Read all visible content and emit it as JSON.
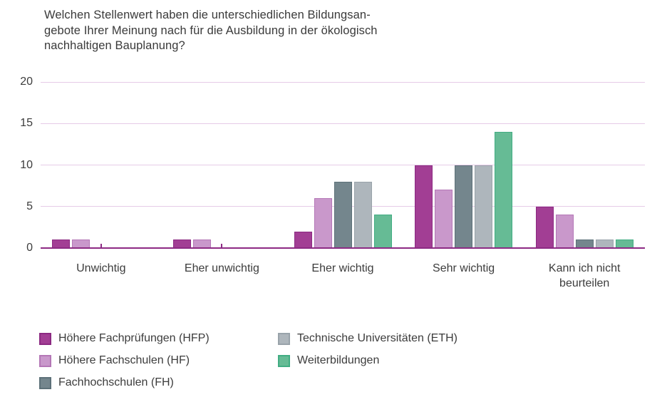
{
  "page": {
    "background": "#ffffff"
  },
  "chart_data": {
    "type": "bar",
    "title": "Welchen Stellenwert haben die unterschiedlichen Bildungsangebote Ihrer Meinung nach für die Ausbildung in der ökologisch nachhaltigen Bauplanung?",
    "title_lines": [
      "Welchen Stellenwert haben die unterschiedlichen Bildungsan-",
      "gebote Ihrer Meinung nach für die Ausbildung in der ökologisch",
      "nachhaltigen Bauplanung?"
    ],
    "categories": [
      "Unwichtig",
      "Eher unwichtig",
      "Eher wichtig",
      "Sehr wichtig",
      "Kann ich nicht beurteilen"
    ],
    "series": [
      {
        "name": "Höhere Fachprüfungen (HFP)",
        "values": [
          1,
          1,
          2,
          10,
          5
        ],
        "color": "#a23e94",
        "border_color": "#8c2a82"
      },
      {
        "name": "Höhere Fachschulen (HF)",
        "values": [
          1,
          1,
          6,
          7,
          4
        ],
        "color": "#c998cb",
        "border_color": "#b477b6"
      },
      {
        "name": "Fachhochschulen (FH)",
        "values": [
          0,
          0,
          8,
          10,
          1
        ],
        "color": "#74868d",
        "border_color": "#5d7179"
      },
      {
        "name": "Technische Universitäten (ETH)",
        "values": [
          0,
          0,
          8,
          10,
          1
        ],
        "color": "#aeb6bc",
        "border_color": "#99a3aa"
      },
      {
        "name": "Weiterbildungen",
        "values": [
          0,
          0,
          4,
          14,
          1
        ],
        "color": "#66bb95",
        "border_color": "#42ad83"
      }
    ],
    "ylim": [
      0,
      20
    ],
    "yticks": [
      0,
      5,
      10,
      15,
      20
    ],
    "grid": true,
    "legend_position": "bottom-left",
    "colors": {
      "gridline": "#e6cbe7",
      "axis_line": "#8d2a84",
      "text": "#3c3c3c"
    }
  }
}
